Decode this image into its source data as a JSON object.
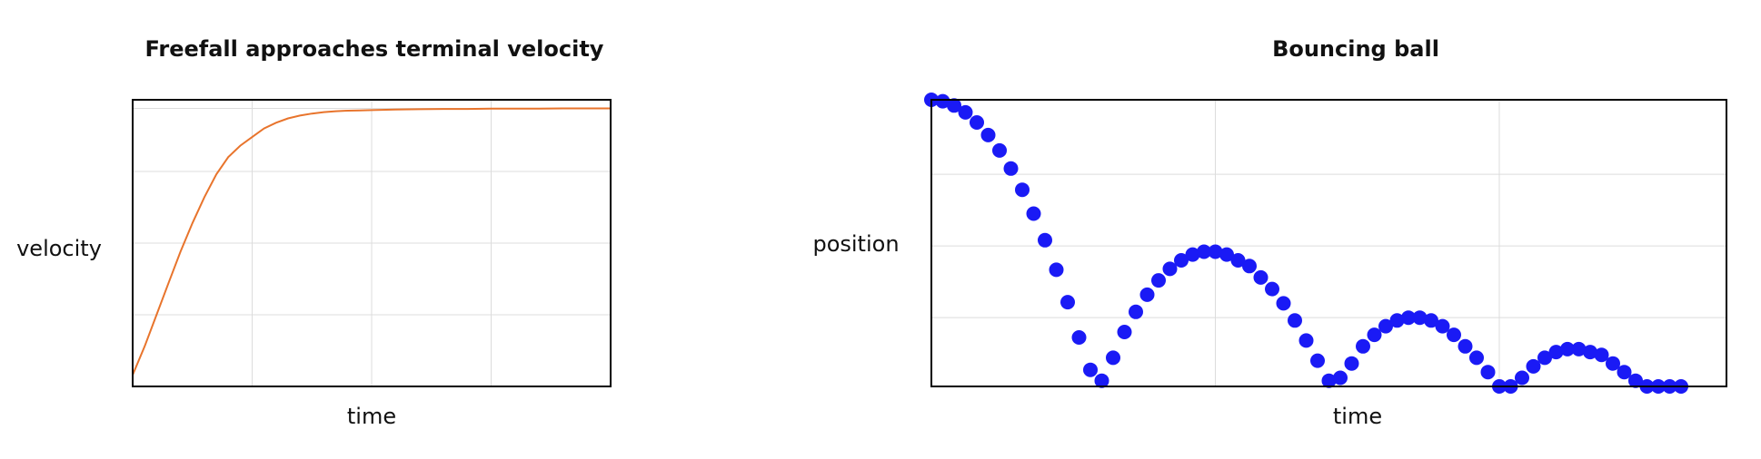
{
  "colors": {
    "line": "#E8742C",
    "markers": "#1A1AF5",
    "grid": "#dcdcdc",
    "frame": "#000000"
  },
  "chart_data": [
    {
      "type": "line",
      "title": "Freefall approaches terminal velocity",
      "xlabel": "time",
      "ylabel": "velocity",
      "grid": true,
      "xlim": [
        0,
        4
      ],
      "ylim": [
        0,
        1.0
      ],
      "xticks": [
        1,
        2,
        3
      ],
      "yticks": [
        0.25,
        0.5,
        0.75,
        0.97
      ],
      "series": [
        {
          "x": [
            0,
            0.1,
            0.2,
            0.3,
            0.4,
            0.5,
            0.6,
            0.7,
            0.8,
            0.9,
            1.0,
            1.1,
            1.2,
            1.3,
            1.4,
            1.5,
            1.6,
            1.7,
            1.8,
            1.9,
            2.0,
            2.2,
            2.4,
            2.6,
            2.8,
            3.0,
            3.2,
            3.4,
            3.6,
            3.8,
            4.0
          ],
          "values": [
            0.04,
            0.14,
            0.25,
            0.36,
            0.47,
            0.57,
            0.66,
            0.74,
            0.8,
            0.84,
            0.87,
            0.9,
            0.92,
            0.935,
            0.945,
            0.952,
            0.957,
            0.96,
            0.962,
            0.963,
            0.964,
            0.966,
            0.967,
            0.968,
            0.968,
            0.969,
            0.969,
            0.969,
            0.97,
            0.97,
            0.97
          ]
        }
      ]
    },
    {
      "type": "scatter",
      "title": "Bouncing ball",
      "xlabel": "time",
      "ylabel": "position",
      "grid": true,
      "xlim": [
        0,
        14
      ],
      "ylim": [
        0,
        1
      ],
      "xticks": [
        5,
        10
      ],
      "yticks": [
        0.24,
        0.49,
        0.74
      ],
      "series": [
        {
          "x": [
            0.0,
            0.2,
            0.4,
            0.6,
            0.8,
            1.0,
            1.2,
            1.4,
            1.6,
            1.8,
            2.0,
            2.2,
            2.4,
            2.6,
            2.8,
            3.0,
            3.2,
            3.4,
            3.6,
            3.8,
            4.0,
            4.2,
            4.4,
            4.6,
            4.8,
            5.0,
            5.2,
            5.4,
            5.6,
            5.8,
            6.0,
            6.2,
            6.4,
            6.6,
            6.8,
            7.0,
            7.2,
            7.4,
            7.6,
            7.8,
            8.0,
            8.2,
            8.4,
            8.6,
            8.8,
            9.0,
            9.2,
            9.4,
            9.6,
            9.8,
            10.0,
            10.2,
            10.4,
            10.6,
            10.8,
            11.0,
            11.2,
            11.4,
            11.6,
            11.8,
            12.0,
            12.2,
            12.4,
            12.6,
            12.8,
            13.0,
            13.2
          ],
          "values": [
            1.0,
            0.995,
            0.98,
            0.956,
            0.921,
            0.877,
            0.823,
            0.76,
            0.686,
            0.603,
            0.51,
            0.407,
            0.294,
            0.171,
            0.058,
            0.02,
            0.1,
            0.19,
            0.26,
            0.32,
            0.37,
            0.41,
            0.44,
            0.46,
            0.47,
            0.47,
            0.46,
            0.44,
            0.42,
            0.38,
            0.34,
            0.29,
            0.23,
            0.16,
            0.09,
            0.02,
            0.03,
            0.08,
            0.14,
            0.18,
            0.21,
            0.23,
            0.24,
            0.24,
            0.23,
            0.21,
            0.18,
            0.14,
            0.1,
            0.05,
            0.0,
            0.0,
            0.03,
            0.07,
            0.1,
            0.12,
            0.13,
            0.13,
            0.12,
            0.11,
            0.08,
            0.05,
            0.02,
            0.0,
            0.0,
            0.0,
            0.0
          ]
        }
      ]
    }
  ]
}
